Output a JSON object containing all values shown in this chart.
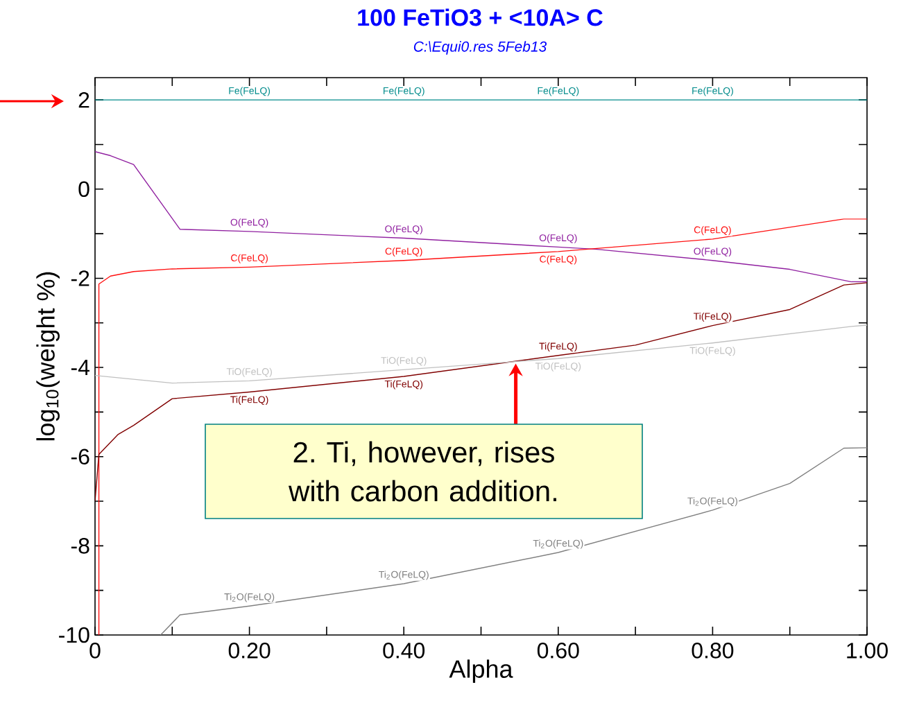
{
  "chart_data": {
    "type": "line",
    "title": "100 FeTiO3 +  <10A> C",
    "subtitle": "C:\\Equi0.res  5Feb13",
    "xlabel": "Alpha",
    "ylabel": "log$_{10}$(weight %)",
    "xlim": [
      0,
      1
    ],
    "ylim": [
      -10,
      2.5
    ],
    "xticks": [
      0,
      {
        "value": 0.1,
        "label": null
      },
      {
        "value": 0.2,
        "label": "0.20"
      },
      {
        "value": 0.3,
        "label": null
      },
      {
        "value": 0.4,
        "label": "0.40"
      },
      {
        "value": 0.5,
        "label": null
      },
      {
        "value": 0.6,
        "label": "0.60"
      },
      {
        "value": 0.7,
        "label": null
      },
      {
        "value": 0.8,
        "label": "0.80"
      },
      {
        "value": 0.9,
        "label": null
      },
      {
        "value": 1,
        "label": "1.00"
      }
    ],
    "yticks": [
      -10,
      {
        "value": -9,
        "label": null
      },
      -8,
      {
        "value": -7,
        "label": null
      },
      -6,
      {
        "value": -5,
        "label": null
      },
      -4,
      {
        "value": -3,
        "label": null
      },
      -2,
      {
        "value": -1,
        "label": null
      },
      0,
      {
        "value": 1,
        "label": null
      },
      2
    ],
    "grid": false,
    "legend": false,
    "marker": "none",
    "line_style": "solid",
    "series": [
      {
        "name": "Fe(FeLQ)",
        "color": "#008b8b",
        "x": [
          0,
          0.05,
          0.2,
          0.4,
          0.6,
          0.8,
          1.0
        ],
        "values": [
          2.0,
          2.0,
          2.0,
          2.0,
          2.0,
          2.0,
          2.0
        ]
      },
      {
        "name": "O(FeLQ)",
        "color": "#9020a0",
        "x": [
          0,
          0.02,
          0.05,
          0.11,
          0.2,
          0.4,
          0.6,
          0.65,
          0.8,
          0.9,
          0.98,
          1.0
        ],
        "values": [
          0.84,
          0.75,
          0.55,
          -0.9,
          -0.95,
          -1.1,
          -1.3,
          -1.35,
          -1.6,
          -1.8,
          -2.08,
          -2.08
        ]
      },
      {
        "name": "C(FeLQ)",
        "color": "#ff1010",
        "x": [
          0.005,
          0.005,
          0.02,
          0.05,
          0.1,
          0.2,
          0.4,
          0.6,
          0.8,
          0.97,
          1.0
        ],
        "values": [
          -10,
          -2.13,
          -1.95,
          -1.85,
          -1.79,
          -1.75,
          -1.6,
          -1.4,
          -1.12,
          -0.67,
          -0.67
        ]
      },
      {
        "name": "Ti(FeLQ)",
        "color": "#800000",
        "x": [
          0,
          0.005,
          0.03,
          0.05,
          0.1,
          0.2,
          0.4,
          0.6,
          0.7,
          0.8,
          0.9,
          0.97,
          1.0
        ],
        "values": [
          -7.0,
          -5.95,
          -5.5,
          -5.3,
          -4.7,
          -4.55,
          -4.2,
          -3.73,
          -3.5,
          -3.06,
          -2.7,
          -2.15,
          -2.1
        ]
      },
      {
        "name": "TiO(FeLQ)",
        "color": "#c0c0c0",
        "x": [
          0,
          0.1,
          0.2,
          0.4,
          0.6,
          0.8,
          0.98,
          1.0
        ],
        "values": [
          -4.18,
          -4.35,
          -4.3,
          -4.05,
          -3.8,
          -3.45,
          -3.08,
          -3.05
        ]
      },
      {
        "name": "Ti$_{2}$O(FeLQ)",
        "color": "#808080",
        "x": [
          0.085,
          0.11,
          0.2,
          0.4,
          0.6,
          0.8,
          0.9,
          0.97,
          1.0
        ],
        "values": [
          -10,
          -9.55,
          -9.35,
          -8.85,
          -8.15,
          -7.2,
          -6.6,
          -5.81,
          -5.8
        ]
      }
    ],
    "annotations": [
      {
        "text": "2. Ti, however, rises with carbon addition.",
        "x": 0.545,
        "y": -3.85
      }
    ]
  }
}
